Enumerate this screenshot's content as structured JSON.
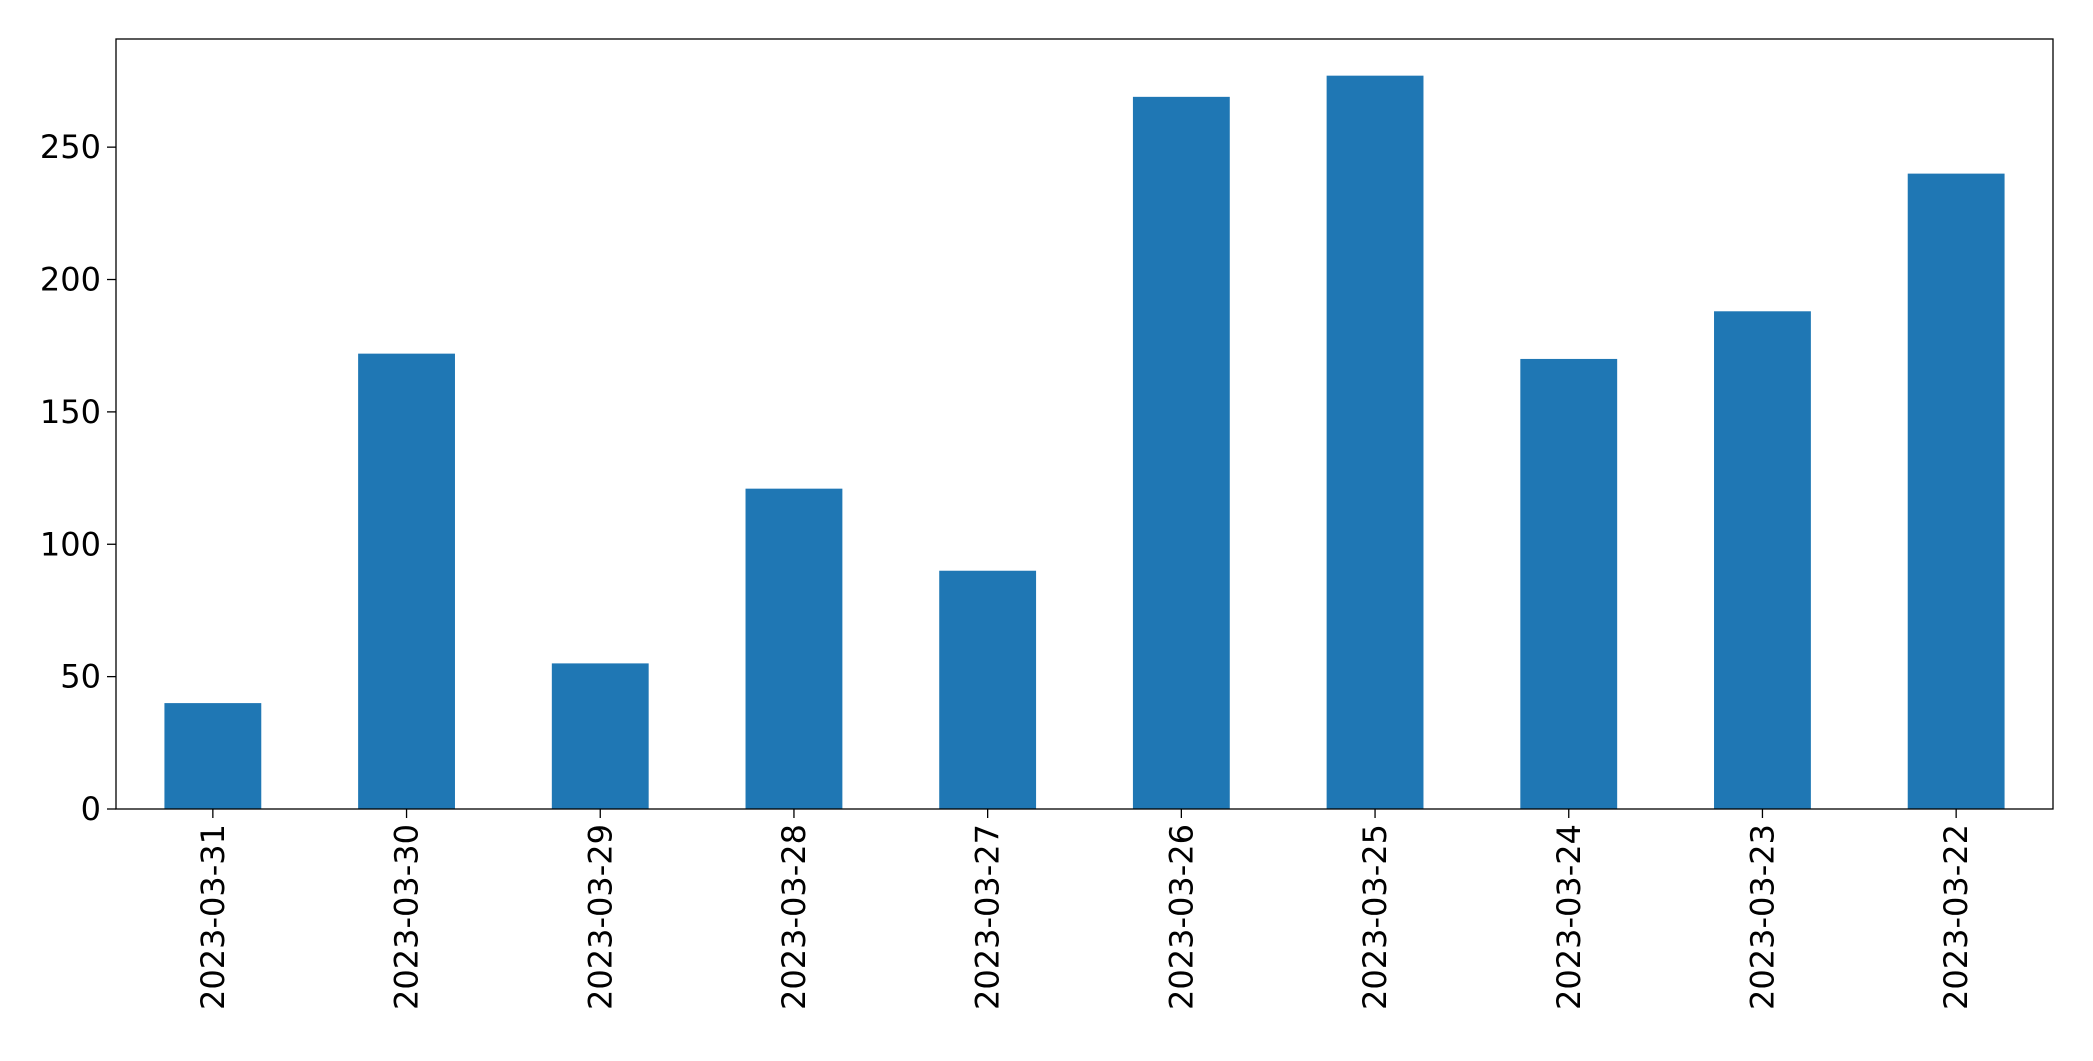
{
  "chart_data": {
    "type": "bar",
    "categories": [
      "2023-03-31",
      "2023-03-30",
      "2023-03-29",
      "2023-03-28",
      "2023-03-27",
      "2023-03-26",
      "2023-03-25",
      "2023-03-24",
      "2023-03-23",
      "2023-03-22"
    ],
    "values": [
      40,
      172,
      55,
      121,
      90,
      269,
      277,
      170,
      188,
      240
    ],
    "color": "#1f77b4",
    "ylim": [
      0,
      290.85
    ],
    "yticks": [
      0,
      50,
      100,
      150,
      200,
      250
    ],
    "grid": false
  }
}
